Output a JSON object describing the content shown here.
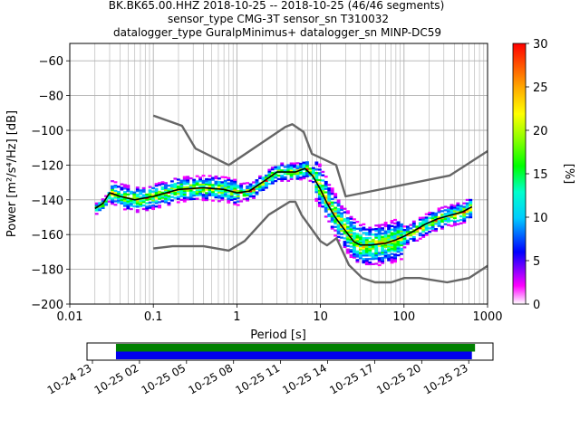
{
  "title": {
    "line1": "BK.BK65.00.HHZ   2018-10-25 -- 2018-10-25  (46/46 segments)",
    "line2": "sensor_type CMG-3T sensor_sn T310032",
    "line3": "datalogger_type GuralpMinimus+ datalogger_sn MINP-DC59"
  },
  "chart_data": [
    {
      "type": "heatmap",
      "description_kind": "probabilistic power spectral density",
      "xlabel": "Period [s]",
      "ylabel": "Power [m²/s⁴/Hz] [dB]",
      "xscale": "log",
      "xlim": [
        0.01,
        1000
      ],
      "ylim": [
        -200,
        -50
      ],
      "xtick_labels": [
        "0.01",
        "0.1",
        "1",
        "10",
        "100",
        "1000"
      ],
      "xtick_values": [
        0.01,
        0.1,
        1,
        10,
        100,
        1000
      ],
      "ytick_values": [
        -200,
        -180,
        -160,
        -140,
        -120,
        -100,
        -80,
        -60
      ],
      "ytick_labels": [
        "−200",
        "−180",
        "−160",
        "−140",
        "−120",
        "−100",
        "−80",
        "−60"
      ],
      "grid": true,
      "colorbar": {
        "label": "[%]",
        "range": [
          0,
          30
        ],
        "tick_values": [
          0,
          5,
          10,
          15,
          20,
          25,
          30
        ],
        "tick_labels": [
          "0",
          "5",
          "10",
          "15",
          "20",
          "25",
          "30"
        ]
      },
      "series": [
        {
          "kind": "noise-model-high",
          "color": "#666666",
          "x": [
            0.1,
            0.22,
            0.32,
            0.8,
            3.8,
            4.6,
            6.3,
            7.9,
            15.4,
            20,
            354,
            1000
          ],
          "y": [
            -91.5,
            -97.4,
            -110.5,
            -120,
            -98,
            -96.5,
            -101,
            -113.5,
            -120,
            -138,
            -126,
            -112
          ]
        },
        {
          "kind": "noise-model-low",
          "color": "#666666",
          "x": [
            0.1,
            0.17,
            0.4,
            0.8,
            1.24,
            2.4,
            4.3,
            5,
            6,
            10,
            12,
            15.6,
            21.9,
            31.6,
            45,
            70,
            101,
            154,
            328,
            600,
            1000
          ],
          "y": [
            -168,
            -166.7,
            -166.7,
            -169.2,
            -163.7,
            -148.6,
            -141.1,
            -141.1,
            -149,
            -163.8,
            -166.2,
            -162.1,
            -177.5,
            -185,
            -187.5,
            -187.5,
            -185,
            -185,
            -187.5,
            -185,
            -178
          ]
        },
        {
          "kind": "mean",
          "color": "#000000",
          "x": [
            0.02,
            0.025,
            0.03,
            0.04,
            0.06,
            0.1,
            0.2,
            0.4,
            0.7,
            1.0,
            1.4,
            2.0,
            3.0,
            4.0,
            5.0,
            6.5,
            8,
            10,
            12,
            15,
            20,
            25,
            30,
            40,
            60,
            80,
            100,
            130,
            180,
            250,
            350,
            500,
            650
          ],
          "y": [
            -145,
            -142,
            -136,
            -138,
            -140,
            -138,
            -134,
            -133,
            -134,
            -136,
            -135,
            -130,
            -124,
            -124,
            -124,
            -122,
            -126,
            -134,
            -142,
            -150,
            -158,
            -164,
            -166,
            -166,
            -165,
            -163,
            -161,
            -158,
            -154,
            -151,
            -149,
            -147,
            -144
          ]
        }
      ]
    },
    {
      "type": "timeline",
      "xtick_labels": [
        "10-24 23",
        "10-25 02",
        "10-25 05",
        "10-25 08",
        "10-25 11",
        "10-25 14",
        "10-25 17",
        "10-25 20",
        "10-25 23"
      ],
      "start": "10-24 23",
      "end": "10-25 23",
      "bars": [
        {
          "color": "#008000",
          "from_hours": 1.5,
          "to_hours": 24.4
        },
        {
          "color": "#0000ee",
          "from_hours": 1.5,
          "to_hours": 24.2
        }
      ]
    }
  ]
}
